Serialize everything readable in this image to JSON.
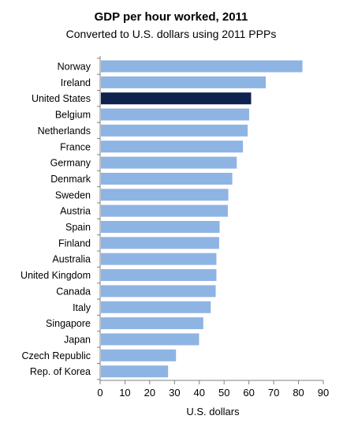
{
  "chart_data": {
    "type": "bar",
    "orientation": "horizontal",
    "title": "GDP per hour worked, 2011",
    "subtitle": "Converted to U.S. dollars using 2011 PPPs",
    "xlabel": "U.S. dollars",
    "ylabel": "",
    "xlim": [
      0,
      90
    ],
    "xticks": [
      0,
      10,
      20,
      30,
      40,
      50,
      60,
      70,
      80,
      90
    ],
    "grid": false,
    "legend": "none",
    "categories": [
      "Norway",
      "Ireland",
      "United States",
      "Belgium",
      "Netherlands",
      "France",
      "Germany",
      "Denmark",
      "Sweden",
      "Austria",
      "Spain",
      "Finland",
      "Australia",
      "United Kingdom",
      "Canada",
      "Italy",
      "Singapore",
      "Japan",
      "Czech Republic",
      "Rep. of Korea"
    ],
    "values": [
      81.6,
      66.8,
      60.9,
      60.1,
      59.5,
      57.6,
      55.1,
      53.3,
      51.7,
      51.5,
      48.2,
      48.0,
      46.9,
      46.9,
      46.6,
      44.6,
      41.6,
      39.9,
      30.6,
      27.4
    ],
    "highlight": "United States",
    "colors": {
      "bar": "#8eb4e3",
      "highlight": "#0f2350",
      "axis": "#808080",
      "text": "#000000"
    }
  }
}
